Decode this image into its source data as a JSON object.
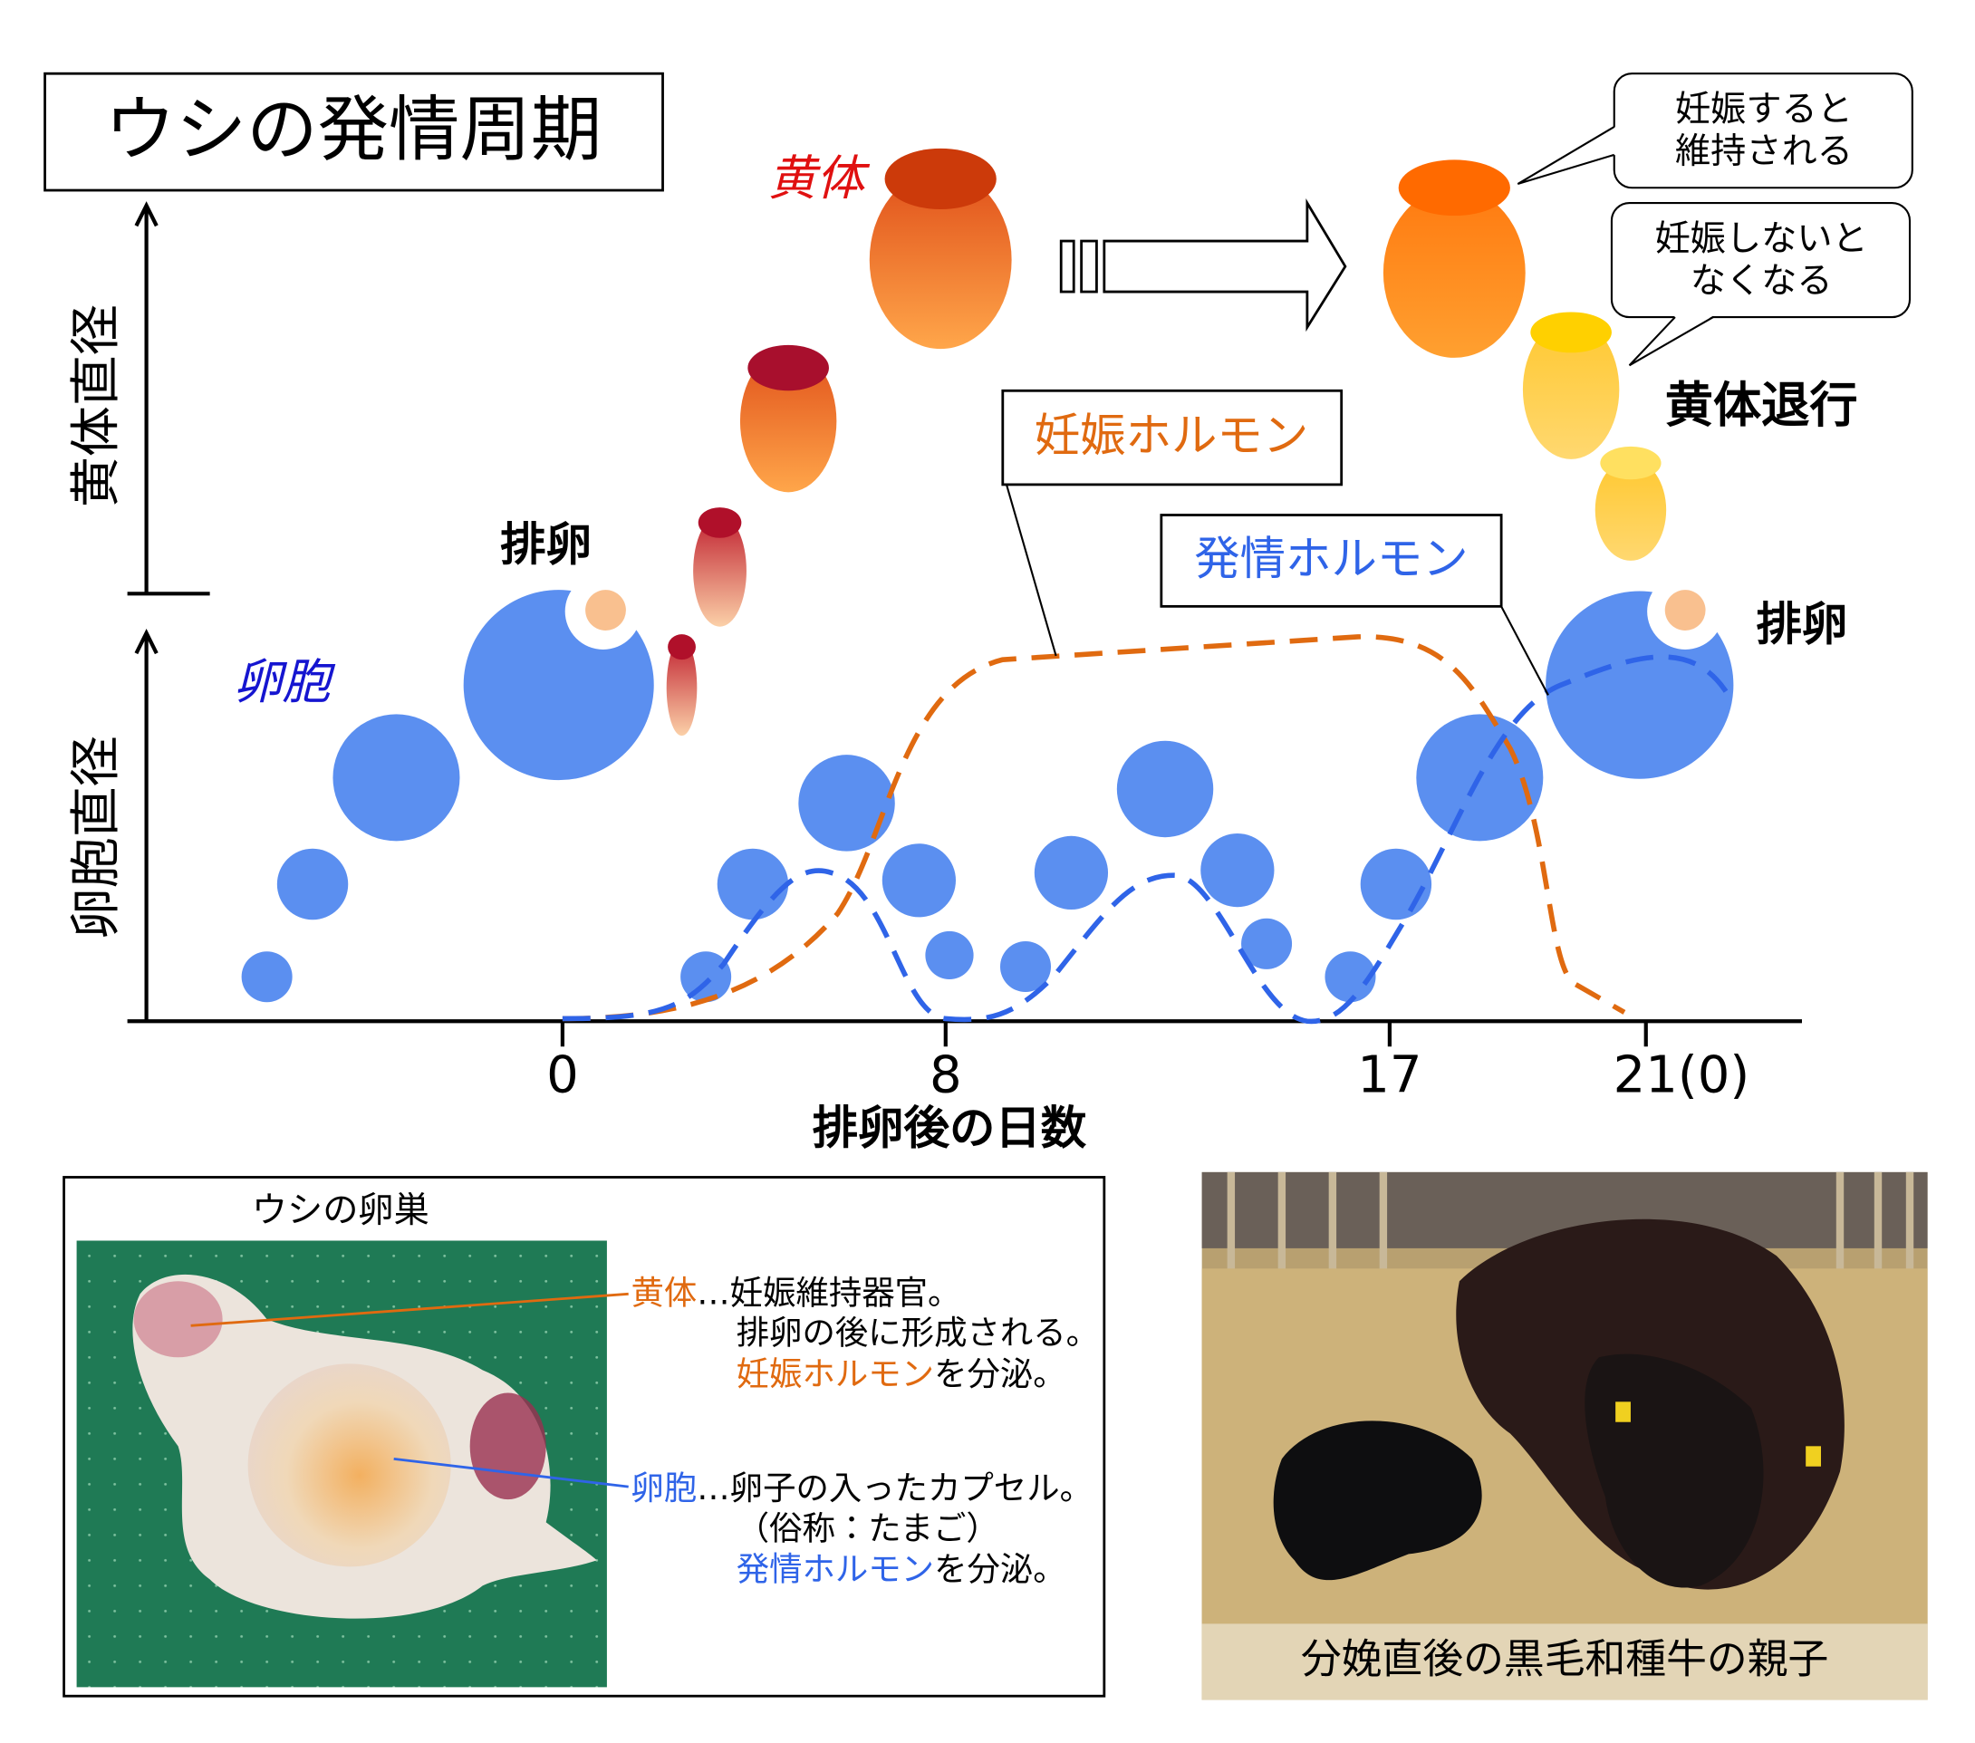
{
  "title": "ウシの発情周期",
  "chart": {
    "y_axis_top": "黄体直径",
    "y_axis_bottom": "卵胞直径",
    "x_axis_title": "排卵後の日数",
    "x_ticks": [
      "0",
      "8",
      "17",
      "21(0)"
    ],
    "labels": {
      "corpus_luteum": "黄体",
      "follicle": "卵胞",
      "ovulation_left": "排卵",
      "ovulation_right": "排卵",
      "regression": "黄体退行",
      "pregnancy_hormone": "妊娠ホルモン",
      "estrus_hormone": "発情ホルモン"
    },
    "callouts": [
      [
        "妊娠すると",
        "維持される"
      ],
      [
        "妊娠しないと",
        "なくなる"
      ]
    ]
  },
  "ovary_panel": {
    "title": "ウシの卵巣",
    "items": [
      {
        "term": "黄体",
        "desc": "…妊娠維持器官。",
        "lines": [
          "排卵の後に形成される。"
        ],
        "hormone": "妊娠ホルモン",
        "hormone_suffix": "を分泌。"
      },
      {
        "term": "卵胞",
        "desc": "…卵子の入ったカプセル。",
        "lines": [
          "（俗称：たまご）"
        ],
        "hormone": "発情ホルモン",
        "hormone_suffix": "を分泌。"
      }
    ]
  },
  "photo": {
    "caption": "分娩直後の黒毛和種牛の親子"
  }
}
